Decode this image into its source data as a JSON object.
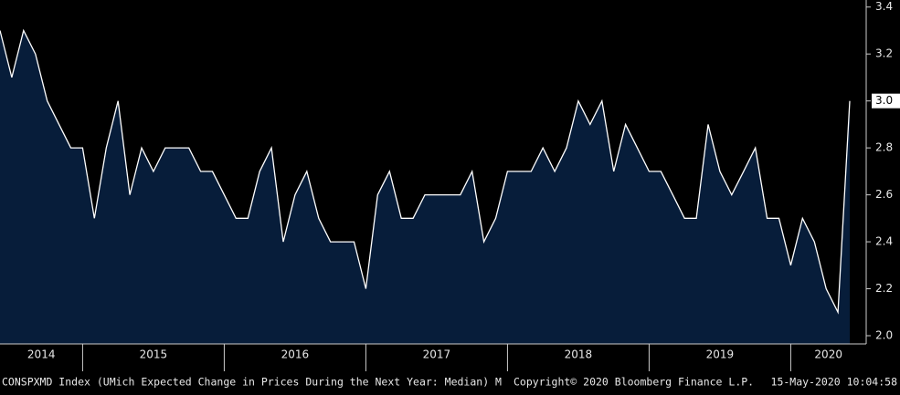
{
  "chart_data": {
    "type": "area",
    "series_label": "CONSPXMD Index (UMich Expected Change in Prices During the Next Year: Median)  M",
    "copyright": "Copyright© 2020 Bloomberg Finance L.P.",
    "timestamp": "15-May-2020 10:04:58",
    "year_labels": [
      "2014",
      "2015",
      "2016",
      "2017",
      "2018",
      "2019",
      "2020"
    ],
    "values": [
      3.3,
      3.1,
      3.3,
      3.2,
      3.0,
      2.9,
      2.8,
      2.8,
      2.5,
      2.8,
      3.0,
      2.6,
      2.8,
      2.7,
      2.8,
      2.8,
      2.8,
      2.7,
      2.7,
      2.6,
      2.5,
      2.5,
      2.7,
      2.8,
      2.4,
      2.6,
      2.7,
      2.5,
      2.4,
      2.4,
      2.4,
      2.2,
      2.6,
      2.7,
      2.5,
      2.5,
      2.6,
      2.6,
      2.6,
      2.6,
      2.7,
      2.4,
      2.5,
      2.7,
      2.7,
      2.7,
      2.8,
      2.7,
      2.8,
      3.0,
      2.9,
      3.0,
      2.7,
      2.9,
      2.8,
      2.7,
      2.7,
      2.6,
      2.5,
      2.5,
      2.9,
      2.7,
      2.6,
      2.7,
      2.8,
      2.5,
      2.5,
      2.3,
      2.5,
      2.4,
      2.2,
      2.1,
      3.0
    ],
    "last_value_label": "3.0",
    "fill": "#071d3a",
    "line_color": "#ffffff",
    "ylim": [
      1.965,
      3.43
    ],
    "yticks": [
      {
        "value": 2.0,
        "label": "2.0"
      },
      {
        "value": 2.2,
        "label": "2.2"
      },
      {
        "value": 2.4,
        "label": "2.4"
      },
      {
        "value": 2.6,
        "label": "2.6"
      },
      {
        "value": 2.8,
        "label": "2.8"
      },
      {
        "value": 3.0,
        "label": "3.0"
      },
      {
        "value": 3.2,
        "label": "3.2"
      },
      {
        "value": 3.4,
        "label": "3.4"
      }
    ]
  }
}
